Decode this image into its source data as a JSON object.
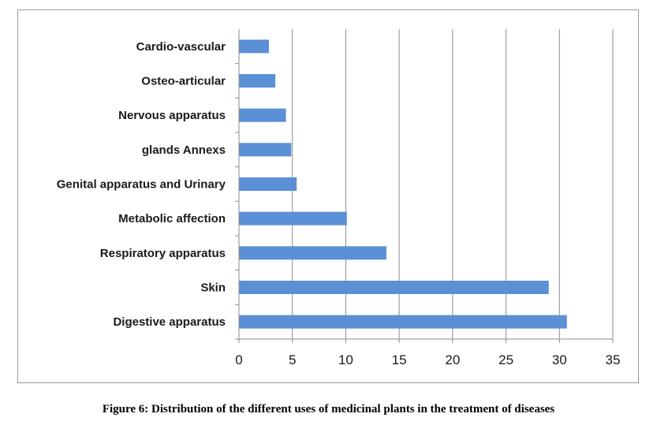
{
  "chart_data": {
    "type": "bar",
    "orientation": "horizontal",
    "categories": [
      "Digestive apparatus",
      "Skin",
      "Respiratory apparatus",
      "Metabolic affection",
      "Genital apparatus and Urinary",
      "glands Annexs",
      "Nervous apparatus",
      "Osteo-articular",
      "Cardio-vascular"
    ],
    "values": [
      30.7,
      29.0,
      13.8,
      10.1,
      5.4,
      4.9,
      4.4,
      3.4,
      2.8
    ],
    "xlim": [
      0,
      35
    ],
    "xticks": [
      "0",
      "5",
      "10",
      "15",
      "20",
      "25",
      "30",
      "35"
    ],
    "grid": true,
    "bar_color": "#5b8fd6"
  },
  "caption": "Figure 6: Distribution of the different uses of medicinal plants in the treatment of diseases"
}
